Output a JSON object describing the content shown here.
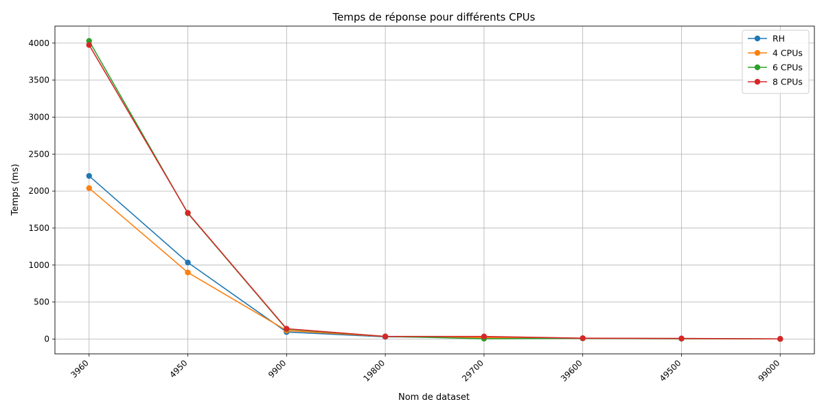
{
  "chart_data": {
    "type": "line",
    "title": "Temps de réponse pour différents CPUs",
    "xlabel": "Nom de dataset",
    "ylabel": "Temps (ms)",
    "categories": [
      "3960",
      "4950",
      "9900",
      "19800",
      "29700",
      "39600",
      "49500",
      "99000"
    ],
    "ylim": [
      -200,
      4230
    ],
    "yticks": [
      0,
      500,
      1000,
      1500,
      2000,
      2500,
      3000,
      3500,
      4000
    ],
    "grid": true,
    "legend_position": "top-right",
    "x_tick_rotation_deg": 45,
    "series": [
      {
        "name": "RH",
        "color": "#1f77b4",
        "values": [
          2205,
          1035,
          95,
          30,
          25,
          10,
          5,
          2
        ]
      },
      {
        "name": "4 CPUs",
        "color": "#ff7f0e",
        "values": [
          2040,
          900,
          115,
          35,
          20,
          10,
          5,
          2
        ]
      },
      {
        "name": "6 CPUs",
        "color": "#2ca02c",
        "values": [
          4030,
          1700,
          135,
          35,
          5,
          10,
          5,
          2
        ]
      },
      {
        "name": "8 CPUs",
        "color": "#d62728",
        "values": [
          3975,
          1705,
          140,
          35,
          35,
          12,
          8,
          2
        ]
      }
    ]
  }
}
